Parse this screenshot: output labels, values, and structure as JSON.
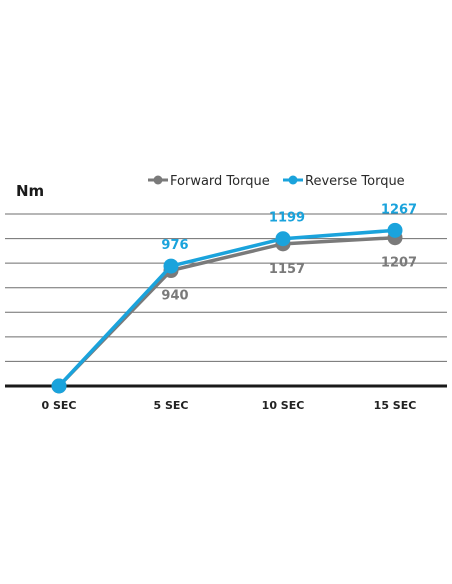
{
  "chart_data": {
    "type": "line",
    "ylabel": "Nm",
    "categories": [
      "0 SEC",
      "5 SEC",
      "10 SEC",
      "15 SEC"
    ],
    "ylim": [
      0,
      1400
    ],
    "grid": true,
    "legend_position": "top-right",
    "series": [
      {
        "name": "Forward Torque",
        "color": "#7a7a7a",
        "values": [
          0,
          940,
          1157,
          1207
        ],
        "labels": [
          "",
          "940",
          "1157",
          "1207"
        ],
        "label_position": "below"
      },
      {
        "name": "Reverse Torque",
        "color": "#1aa3dc",
        "values": [
          0,
          976,
          1199,
          1267
        ],
        "labels": [
          "",
          "976",
          "1199",
          "1267"
        ],
        "label_position": "above"
      }
    ]
  }
}
